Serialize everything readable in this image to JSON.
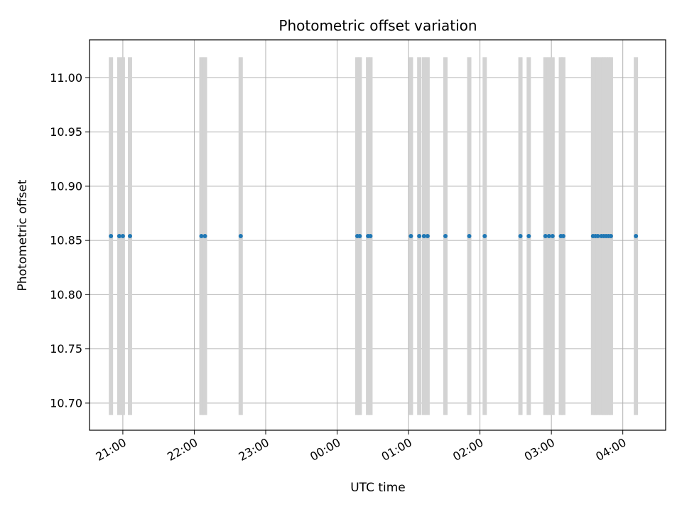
{
  "chart_data": {
    "type": "scatter",
    "title": "Photometric offset variation",
    "xlabel": "UTC time",
    "ylabel": "Photometric offset",
    "x_axis_kind": "time",
    "x_range": [
      "20:32",
      "04:36"
    ],
    "ylim": [
      10.675,
      11.035
    ],
    "grid": true,
    "x_ticks": [
      "21:00",
      "22:00",
      "23:00",
      "00:00",
      "01:00",
      "02:00",
      "03:00",
      "04:00"
    ],
    "y_ticks": [
      "10.70",
      "10.75",
      "10.80",
      "10.85",
      "10.90",
      "10.95",
      "11.00"
    ],
    "point_color": "#1f77b4",
    "band_color": "#d3d3d3",
    "band_y_range": [
      10.689,
      11.019
    ],
    "series": [
      {
        "x": [
          "20:50",
          "20:57",
          "21:00",
          "21:06",
          "22:06",
          "22:09",
          "22:39",
          "00:17",
          "00:19",
          "00:26",
          "00:28",
          "01:02",
          "01:09",
          "01:13",
          "01:16",
          "01:31",
          "01:51",
          "02:04",
          "02:34",
          "02:41",
          "02:55",
          "02:58",
          "03:01",
          "03:08",
          "03:10",
          "03:35",
          "03:37",
          "03:39",
          "03:42",
          "03:44",
          "03:46",
          "03:48",
          "03:50",
          "04:11"
        ],
        "y": [
          10.854,
          10.854,
          10.854,
          10.854,
          10.854,
          10.854,
          10.854,
          10.854,
          10.854,
          10.854,
          10.854,
          10.854,
          10.854,
          10.854,
          10.854,
          10.854,
          10.854,
          10.854,
          10.854,
          10.854,
          10.854,
          10.854,
          10.854,
          10.854,
          10.854,
          10.854,
          10.854,
          10.854,
          10.854,
          10.854,
          10.854,
          10.854,
          10.854,
          10.854
        ]
      }
    ]
  }
}
